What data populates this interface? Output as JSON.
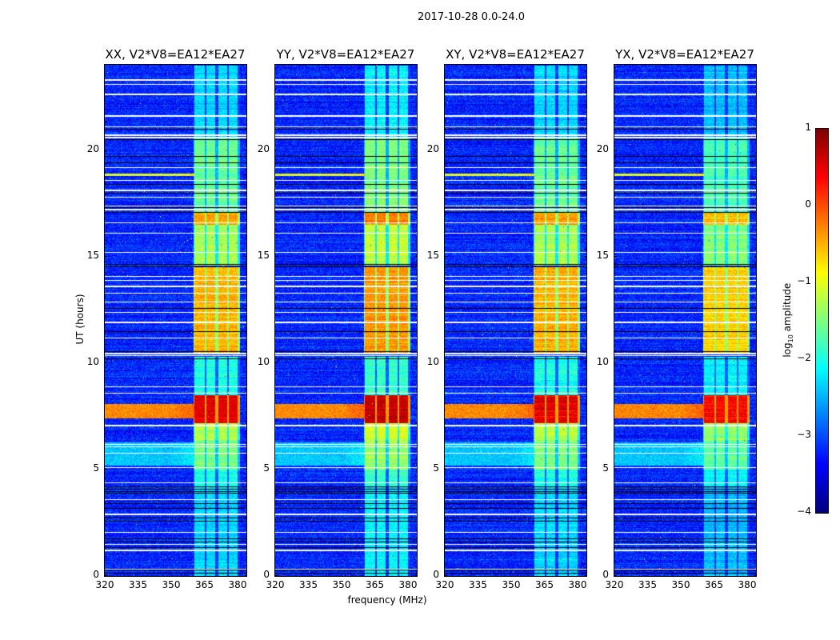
{
  "suptitle": "2017-10-28 0.0-24.0",
  "chart_data": {
    "type": "heatmap",
    "xlabel": "frequency (MHz)",
    "ylabel": "UT (hours)",
    "xlim": [
      320,
      384
    ],
    "ylim": [
      0,
      24
    ],
    "xticks": [
      "320",
      "335",
      "350",
      "365",
      "380"
    ],
    "yticks": [
      "0",
      "5",
      "10",
      "15",
      "20"
    ],
    "colorbar": {
      "label": "log",
      "label_sub": "10",
      "label_tail": " amplitude",
      "range": [
        -4,
        1
      ],
      "ticks": [
        "1",
        "0",
        "−1",
        "−2",
        "−3",
        "−4"
      ],
      "colormap": "jet"
    },
    "panels": [
      {
        "title": "XX, V2*V8=EA12*EA27",
        "seed": 11,
        "gain": 0.0
      },
      {
        "title": "YY, V2*V8=EA12*EA27",
        "seed": 23,
        "gain": 0.15
      },
      {
        "title": "XY, V2*V8=EA12*EA27",
        "seed": 37,
        "gain": 0.0
      },
      {
        "title": "YX, V2*V8=EA12*EA27",
        "seed": 53,
        "gain": -0.15
      }
    ],
    "bright_channels_mhz": [
      [
        360.4,
        365.1
      ],
      [
        365.8,
        369.8
      ],
      [
        371.0,
        375.0
      ],
      [
        375.8,
        379.8
      ]
    ],
    "background_log_amp": -3.2,
    "band_log_amp_by_time": [
      {
        "t": [
          0,
          4.2
        ],
        "v": -2.3
      },
      {
        "t": [
          4.2,
          5.0
        ],
        "v": -2.0
      },
      {
        "t": [
          5.0,
          6.4
        ],
        "v": -1.5
      },
      {
        "t": [
          6.4,
          7.2
        ],
        "v": -1.2
      },
      {
        "t": [
          7.2,
          8.5
        ],
        "v": 0.5
      },
      {
        "t": [
          8.5,
          10.3
        ],
        "v": -2.0
      },
      {
        "t": [
          10.5,
          14.5
        ],
        "v": -0.5
      },
      {
        "t": [
          14.6,
          16.5
        ],
        "v": -1.3
      },
      {
        "t": [
          16.5,
          17.1
        ],
        "v": -0.4
      },
      {
        "t": [
          17.1,
          20.6
        ],
        "v": -1.6
      },
      {
        "t": [
          20.6,
          24
        ],
        "v": -2.3
      }
    ],
    "background_events": [
      {
        "t": [
          5.2,
          6.3
        ],
        "v": -2.4
      },
      {
        "t": [
          7.4,
          8.1
        ],
        "v": -0.3
      },
      {
        "t": [
          18.8,
          18.9
        ],
        "v": -1.0
      }
    ],
    "flagged_white_hours": [
      0.35,
      1.2,
      1.5,
      2.05,
      2.9,
      3.6,
      4.4,
      5.1,
      5.8,
      6.1,
      6.2,
      7.05,
      8.6,
      8.9,
      10.35,
      10.45,
      11.2,
      11.9,
      12.4,
      12.9,
      13.3,
      13.6,
      13.9,
      14.1,
      14.55,
      15.2,
      16.1,
      16.6,
      17.2,
      17.4,
      17.8,
      18.1,
      18.6,
      19.2,
      20.6,
      20.7,
      21.1,
      21.6,
      22.6,
      23.1,
      23.3
    ],
    "flagged_black_hours": [
      0.15,
      0.3,
      1.35,
      1.6,
      1.75,
      2.6,
      2.75,
      3.2,
      3.4,
      3.9,
      4.0,
      4.1,
      4.2,
      10.2,
      10.55,
      11.5,
      12.6,
      14.55,
      14.65,
      17.1,
      17.3,
      18.0,
      18.4,
      19.4,
      19.7,
      20.5,
      21.0
    ]
  }
}
